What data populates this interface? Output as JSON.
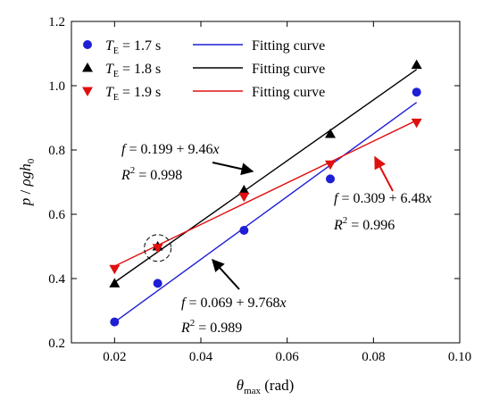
{
  "chart_data": {
    "type": "scatter",
    "xlabel": {
      "symbol": "θ",
      "sub": "max",
      "unit": " (rad)"
    },
    "ylabel": {
      "p": "p",
      "slash": " / ",
      "rho": "ρgh",
      "sub": "0"
    },
    "xlim": [
      0.01,
      0.1
    ],
    "ylim": [
      0.2,
      1.2
    ],
    "xticks": [
      0.02,
      0.04,
      0.06,
      0.08,
      0.1
    ],
    "xtick_labels": [
      "0.02",
      "0.04",
      "0.06",
      "0.08",
      "0.10"
    ],
    "yticks": [
      0.2,
      0.4,
      0.6,
      0.8,
      1.0,
      1.2
    ],
    "ytick_labels": [
      "0.2",
      "0.4",
      "0.6",
      "0.8",
      "1.0",
      "1.2"
    ],
    "legend_position": "top-left",
    "grid": false,
    "series": [
      {
        "name": "T_E = 1.7 s",
        "legend": {
          "T": "T",
          "sub": "E",
          "rest": " = 1.7 s"
        },
        "fit_label": "Fitting curve",
        "marker": "circle",
        "color": "#1f1fd6",
        "x": [
          0.02,
          0.03,
          0.05,
          0.07,
          0.09
        ],
        "y": [
          0.265,
          0.385,
          0.55,
          0.71,
          0.98
        ],
        "fit": {
          "intercept": 0.069,
          "slope": 9.768
        },
        "equation": {
          "f": "f",
          "eq": " = 0.069 + 9.768",
          "x": "x"
        },
        "r2": {
          "R": "R",
          "exp": "2",
          "eq": " = 0.989"
        }
      },
      {
        "name": "T_E = 1.8 s",
        "legend": {
          "T": "T",
          "sub": "E",
          "rest": " = 1.8 s"
        },
        "fit_label": "Fitting curve",
        "marker": "triangle-up",
        "color": "#000000",
        "x": [
          0.02,
          0.03,
          0.05,
          0.07,
          0.09
        ],
        "y": [
          0.385,
          0.5,
          0.675,
          0.85,
          1.065
        ],
        "fit": {
          "intercept": 0.199,
          "slope": 9.46
        },
        "equation": {
          "f": "f",
          "eq": " = 0.199 + 9.46",
          "x": "x"
        },
        "r2": {
          "R": "R",
          "exp": "2",
          "eq": " = 0.998"
        }
      },
      {
        "name": "T_E = 1.9 s",
        "legend": {
          "T": "T",
          "sub": "E",
          "rest": " = 1.9 s"
        },
        "fit_label": "Fitting curve",
        "marker": "triangle-down",
        "color": "#e01010",
        "x": [
          0.02,
          0.03,
          0.05,
          0.07,
          0.09
        ],
        "y": [
          0.43,
          0.495,
          0.655,
          0.755,
          0.885
        ],
        "fit": {
          "intercept": 0.309,
          "slope": 6.48
        },
        "equation": {
          "f": "f",
          "eq": " = 0.309 + 6.48",
          "x": "x"
        },
        "r2": {
          "R": "R",
          "exp": "2",
          "eq": " = 0.996"
        }
      }
    ],
    "highlight": {
      "x": 0.03,
      "y": 0.495,
      "style": "dashed-circle"
    }
  }
}
